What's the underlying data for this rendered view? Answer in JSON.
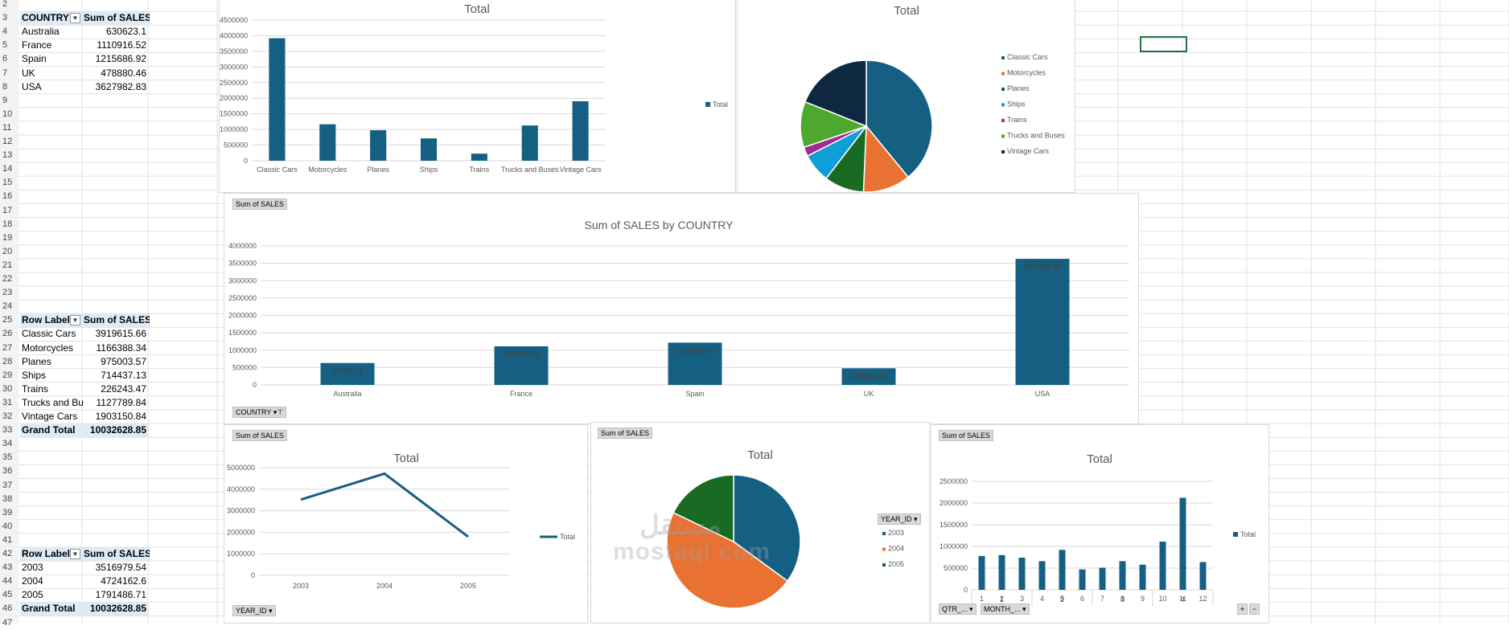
{
  "colors": {
    "blue": "#156082",
    "orange": "#e97132",
    "green": "#196b24",
    "lightblue": "#0f9ed5",
    "purple": "#a02b93",
    "lightgreen": "#4ea72e",
    "navy": "#0e2841",
    "header_fill": "#ddebf7",
    "selection": "#217346"
  },
  "row_numbers": [
    "2",
    "3",
    "4",
    "5",
    "6",
    "7",
    "8",
    "9",
    "10",
    "11",
    "12",
    "13",
    "14",
    "15",
    "16",
    "17",
    "18",
    "19",
    "20",
    "21",
    "22",
    "23",
    "24",
    "25",
    "26",
    "27",
    "28",
    "29",
    "30",
    "31",
    "32",
    "33",
    "34",
    "35",
    "36",
    "37",
    "38",
    "39",
    "40",
    "41",
    "42",
    "43",
    "44",
    "45",
    "46",
    "47"
  ],
  "pivot_country": {
    "header": [
      "COUNTRY",
      "Sum of SALES"
    ],
    "rows": [
      [
        "Australia",
        "630623.1"
      ],
      [
        "France",
        "1110916.52"
      ],
      [
        "Spain",
        "1215686.92"
      ],
      [
        "UK",
        "478880.46"
      ],
      [
        "USA",
        "3627982.83"
      ]
    ]
  },
  "pivot_product": {
    "header": [
      "Row Label",
      "Sum of SALES"
    ],
    "rows": [
      [
        "Classic Cars",
        "3919615.66"
      ],
      [
        "Motorcycles",
        "1166388.34"
      ],
      [
        "Planes",
        "975003.57"
      ],
      [
        "Ships",
        "714437.13"
      ],
      [
        "Trains",
        "226243.47"
      ],
      [
        "Trucks and Bu",
        "1127789.84"
      ],
      [
        "Vintage Cars",
        "1903150.84"
      ]
    ],
    "total": [
      "Grand Total",
      "10032628.85"
    ]
  },
  "pivot_year": {
    "header": [
      "Row Label",
      "Sum of SALES"
    ],
    "rows": [
      [
        "2003",
        "3516979.54"
      ],
      [
        "2004",
        "4724162.6"
      ],
      [
        "2005",
        "1791486.71"
      ]
    ],
    "total": [
      "Grand Total",
      "10032628.85"
    ]
  },
  "field_buttons": {
    "sum_of_sales": "Sum of SALES",
    "country": "COUNTRY",
    "year_id": "YEAR_ID",
    "qtr": "QTR_...",
    "month": "MONTH_..."
  },
  "zoom_buttons": [
    "+",
    "−"
  ],
  "watermark": [
    "مستقل",
    "mostaql.com"
  ],
  "chart_data": [
    {
      "type": "bar",
      "title": "Total",
      "categories": [
        "Classic Cars",
        "Motorcycles",
        "Planes",
        "Ships",
        "Trains",
        "Trucks and Buses",
        "Vintage Cars"
      ],
      "values": [
        3919615.66,
        1166388.34,
        975003.57,
        714437.13,
        226243.47,
        1127789.84,
        1903150.84
      ],
      "ylim": [
        0,
        4500000
      ],
      "yticks": [
        "4500000",
        "4000000",
        "3500000",
        "3000000",
        "2500000",
        "2000000",
        "1500000",
        "1000000",
        "500000",
        "0"
      ],
      "legend": [
        "Total"
      ],
      "legend_position": "right",
      "grid": true
    },
    {
      "type": "pie",
      "title": "Total",
      "categories": [
        "Classic Cars",
        "Motorcycles",
        "Planes",
        "Ships",
        "Trains",
        "Trucks and Buses",
        "Vintage Cars"
      ],
      "values": [
        3919615.66,
        1166388.34,
        975003.57,
        714437.13,
        226243.47,
        1127789.84,
        1903150.84
      ],
      "legend_position": "right"
    },
    {
      "type": "bar",
      "title": "Sum of SALES by COUNTRY",
      "categories": [
        "Australia",
        "France",
        "Spain",
        "UK",
        "USA"
      ],
      "values": [
        630623.1,
        1110916.52,
        1215686.92,
        478880.46,
        3627982.83
      ],
      "data_labels": [
        "630623.1",
        "1110916.52",
        "1215686.92",
        "478880.46",
        "3627982.83"
      ],
      "ylim": [
        0,
        4000000
      ],
      "yticks": [
        "4000000",
        "3500000",
        "3000000",
        "2500000",
        "2000000",
        "1500000",
        "1000000",
        "500000",
        "0"
      ],
      "grid": true
    },
    {
      "type": "line",
      "title": "Total",
      "categories": [
        "2003",
        "2004",
        "2005"
      ],
      "values": [
        3516979.54,
        4724162.6,
        1791486.71
      ],
      "ylim": [
        0,
        5000000
      ],
      "yticks": [
        "5000000",
        "4000000",
        "3000000",
        "2000000",
        "1000000",
        "0"
      ],
      "legend": [
        "Total"
      ],
      "legend_position": "right",
      "grid": true
    },
    {
      "type": "pie",
      "title": "Total",
      "categories": [
        "2003",
        "2004",
        "2005"
      ],
      "values": [
        3516979.54,
        4724162.6,
        1791486.71
      ],
      "legend_position": "right"
    },
    {
      "type": "bar",
      "title": "Total",
      "categories": [
        "1",
        "2",
        "3",
        "4",
        "5",
        "6",
        "7",
        "8",
        "9",
        "10",
        "11",
        "12"
      ],
      "quarters": [
        "1",
        "2",
        "3",
        "4"
      ],
      "values": [
        780000,
        800000,
        740000,
        660000,
        920000,
        470000,
        510000,
        660000,
        580000,
        1110000,
        2120000,
        640000
      ],
      "ylim": [
        0,
        2500000
      ],
      "yticks": [
        "2500000",
        "2000000",
        "1500000",
        "1000000",
        "500000",
        "0"
      ],
      "legend": [
        "Total"
      ],
      "legend_position": "right",
      "grid": true
    }
  ]
}
